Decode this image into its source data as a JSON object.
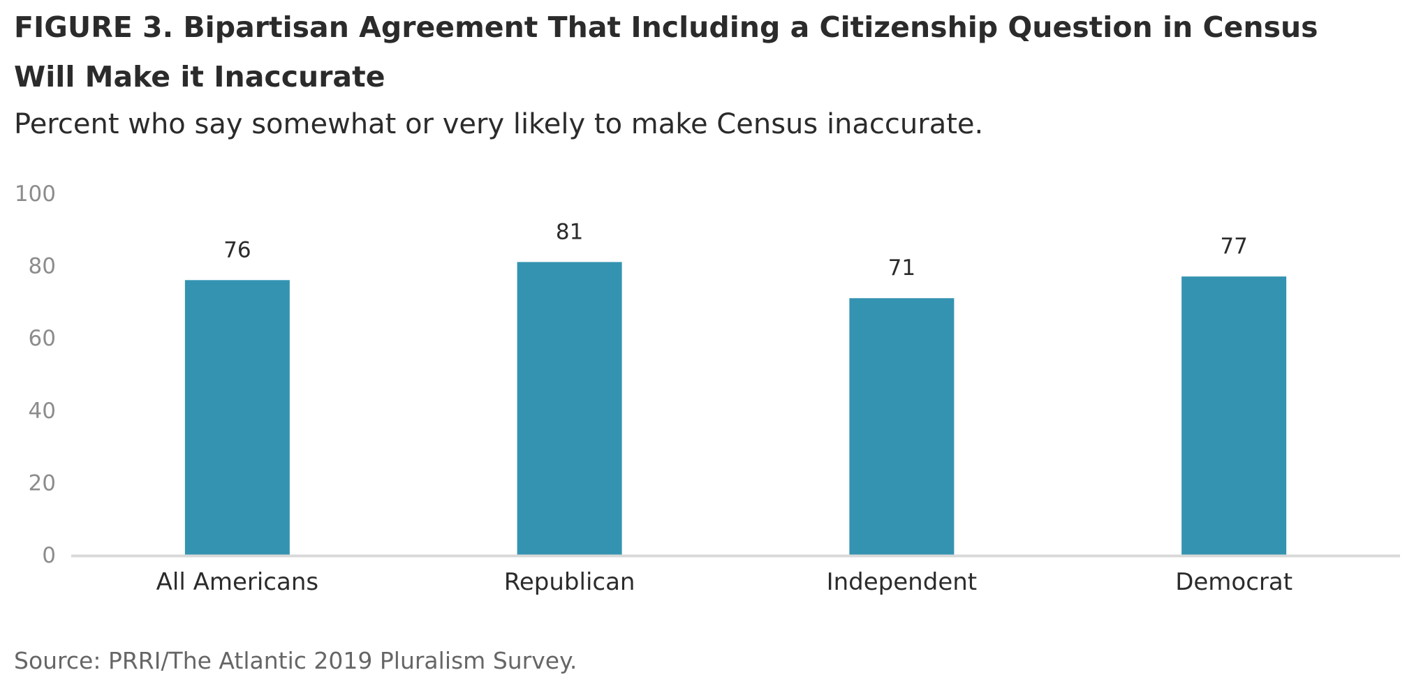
{
  "figure": {
    "title": "FIGURE 3. Bipartisan Agreement That Including a Citizenship Question in Census Will Make it Inaccurate",
    "subtitle": "Percent who say somewhat or very likely to make Census inaccurate.",
    "source": "Source: PRRI/The Atlantic 2019 Pluralism Survey."
  },
  "chart_data": {
    "type": "bar",
    "title": "FIGURE 3. Bipartisan Agreement That Including a Citizenship Question in Census Will Make it Inaccurate",
    "subtitle": "Percent who say somewhat or very likely to make Census inaccurate.",
    "categories": [
      "All Americans",
      "Republican",
      "Independent",
      "Democrat"
    ],
    "values": [
      76,
      81,
      71,
      77
    ],
    "data_labels": [
      "76",
      "81",
      "71",
      "77"
    ],
    "xlabel": "",
    "ylabel": "",
    "ylim": [
      0,
      100
    ],
    "yticks": [
      0,
      20,
      40,
      60,
      80,
      100
    ],
    "ytick_labels": [
      "0",
      "20",
      "40",
      "60",
      "80",
      "100"
    ],
    "grid": false,
    "legend": "none",
    "colors": {
      "bar": "#3493b1",
      "axis": "#d9d9d9",
      "tick_text": "#8c8c8c",
      "label_text": "#2b2b2b"
    }
  }
}
